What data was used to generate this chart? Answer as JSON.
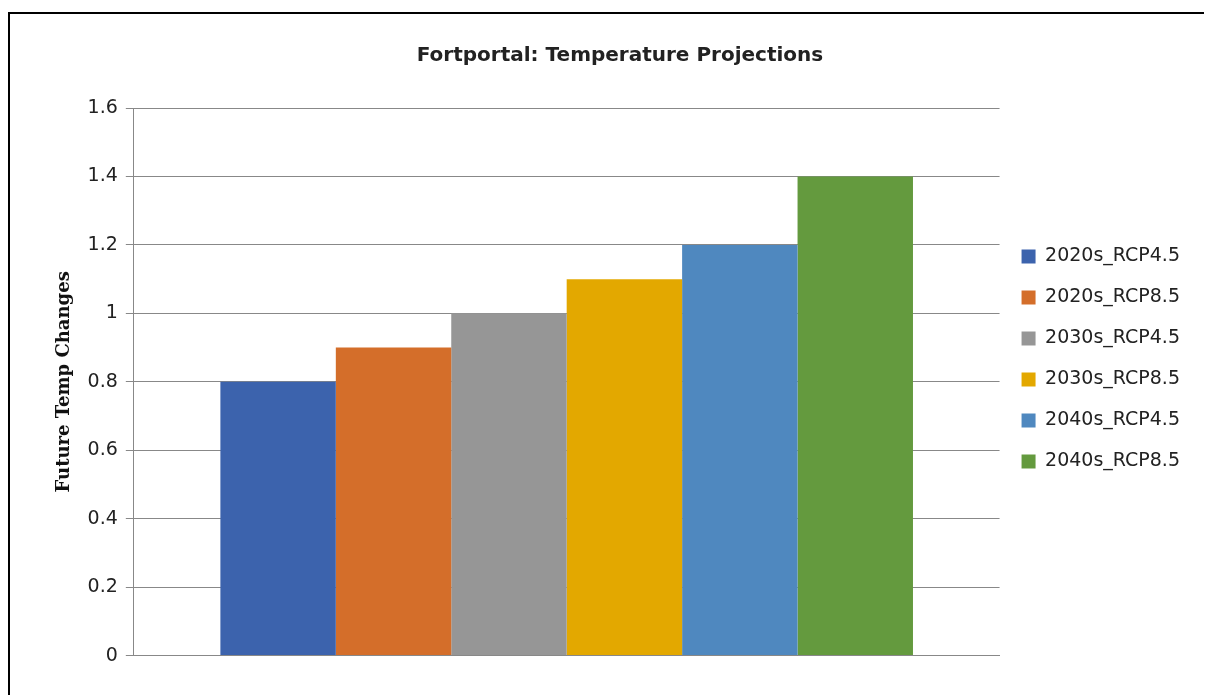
{
  "chart_data": {
    "type": "bar",
    "title": "Fortportal: Temperature Projections",
    "ylabel": "Future Temp Changes",
    "categories": [
      null
    ],
    "series": [
      {
        "name": "2020s_RCP4.5",
        "color": "#3c63ad",
        "values": [
          0.8
        ]
      },
      {
        "name": "2020s_RCP8.5",
        "color": "#d46e2a",
        "values": [
          0.9
        ]
      },
      {
        "name": "2030s_RCP4.5",
        "color": "#969696",
        "values": [
          1.0
        ]
      },
      {
        "name": "2030s_RCP8.5",
        "color": "#e3a800",
        "values": [
          1.1
        ]
      },
      {
        "name": "2040s_RCP4.5",
        "color": "#4f88bf",
        "values": [
          1.2
        ]
      },
      {
        "name": "2040s_RCP8.5",
        "color": "#649a3e",
        "values": [
          1.4
        ]
      }
    ],
    "ylim": [
      0,
      1.6
    ],
    "yticks": [
      0,
      0.2,
      0.4,
      0.6,
      0.8,
      1,
      1.2,
      1.4,
      1.6
    ],
    "grid": "y",
    "legend": "right"
  }
}
